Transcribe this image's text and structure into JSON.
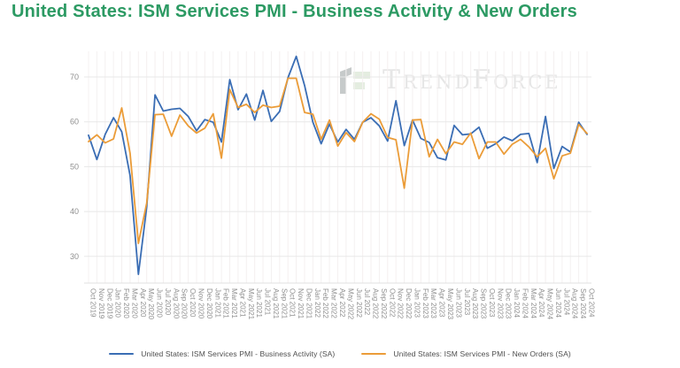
{
  "title": "United States: ISM Services PMI - Business Activity & New Orders",
  "watermark": {
    "text": "TrendForce"
  },
  "colors": {
    "title_green": "#2c9a63",
    "business_activity": "#3a6db4",
    "new_orders": "#eb9c38",
    "grid_horizontal": "#e8e8e8",
    "grid_vertical": "#f4f0f0",
    "axis_line": "#e0e0e0",
    "axis_text": "#8f8f8f",
    "legend_text": "#4d4d4d"
  },
  "chart_data": {
    "type": "line",
    "title": "United States: ISM Services PMI - Business Activity & New Orders",
    "xlabel": "",
    "ylabel": "",
    "ylim": [
      24,
      76
    ],
    "yticks": [
      30,
      40,
      50,
      60,
      70
    ],
    "grid": true,
    "legend_position": "bottom",
    "x": [
      "Oct 2019",
      "Nov 2019",
      "Dec 2019",
      "Jan 2020",
      "Feb 2020",
      "Mar 2020",
      "Apr 2020",
      "May 2020",
      "Jun 2020",
      "Jul 2020",
      "Aug 2020",
      "Sep 2020",
      "Oct 2020",
      "Nov 2020",
      "Dec 2020",
      "Jan 2021",
      "Feb 2021",
      "Mar 2021",
      "Apr 2021",
      "May 2021",
      "Jun 2021",
      "Jul 2021",
      "Aug 2021",
      "Sep 2021",
      "Oct 2021",
      "Nov 2021",
      "Dec 2021",
      "Jan 2022",
      "Feb 2022",
      "Mar 2022",
      "Apr 2022",
      "May 2022",
      "Jun 2022",
      "Jul 2022",
      "Aug 2022",
      "Sep 2022",
      "Oct 2022",
      "Nov 2022",
      "Dec 2022",
      "Jan 2023",
      "Feb 2023",
      "Mar 2023",
      "Apr 2023",
      "May 2023",
      "Jun 2023",
      "Jul 2023",
      "Aug 2023",
      "Sep 2023",
      "Oct 2023",
      "Nov 2023",
      "Dec 2023",
      "Jan 2024",
      "Feb 2024",
      "Mar 2024",
      "Apr 2024",
      "May 2024",
      "Jun 2024",
      "Jul 2024",
      "Aug 2024",
      "Sep 2024",
      "Oct 2024"
    ],
    "series": [
      {
        "name": "United States: ISM Services PMI - Business Activity (SA)",
        "color": "#3a6db4",
        "values": [
          57.0,
          51.6,
          57.2,
          60.9,
          57.8,
          48.0,
          26.0,
          41.0,
          66.0,
          62.4,
          62.8,
          63.0,
          61.2,
          58.0,
          60.5,
          59.9,
          55.5,
          69.4,
          62.7,
          66.2,
          60.4,
          67.0,
          60.1,
          62.3,
          69.8,
          74.6,
          68.1,
          59.9,
          55.1,
          59.5,
          55.5,
          58.3,
          56.1,
          59.9,
          60.9,
          59.1,
          55.7,
          64.7,
          54.7,
          60.4,
          56.3,
          55.4,
          52.0,
          51.5,
          59.2,
          57.1,
          57.3,
          58.8,
          54.1,
          55.1,
          56.6,
          55.8,
          57.2,
          57.4,
          50.9,
          61.2,
          49.6,
          54.5,
          53.3,
          59.9,
          57.2
        ]
      },
      {
        "name": "United States: ISM Services PMI - New Orders (SA)",
        "color": "#eb9c38",
        "values": [
          55.6,
          57.1,
          55.3,
          56.2,
          63.1,
          53.0,
          32.9,
          41.9,
          61.6,
          61.7,
          56.8,
          61.5,
          59.1,
          57.5,
          58.6,
          61.8,
          51.9,
          67.2,
          63.2,
          63.9,
          62.1,
          63.7,
          63.2,
          63.5,
          69.7,
          69.7,
          62.1,
          61.7,
          56.1,
          60.4,
          54.6,
          57.6,
          55.6,
          59.9,
          61.8,
          60.6,
          56.5,
          56.0,
          45.2,
          60.4,
          60.5,
          52.2,
          56.1,
          52.9,
          55.5,
          55.0,
          57.5,
          51.8,
          55.5,
          55.5,
          52.8,
          55.0,
          56.1,
          54.4,
          52.2,
          54.1,
          47.3,
          52.4,
          53.0,
          59.4,
          57.4
        ]
      }
    ]
  },
  "legend": {
    "items": [
      {
        "label": "United States: ISM Services PMI - Business Activity (SA)"
      },
      {
        "label": "United States: ISM Services PMI - New Orders (SA)"
      }
    ]
  }
}
